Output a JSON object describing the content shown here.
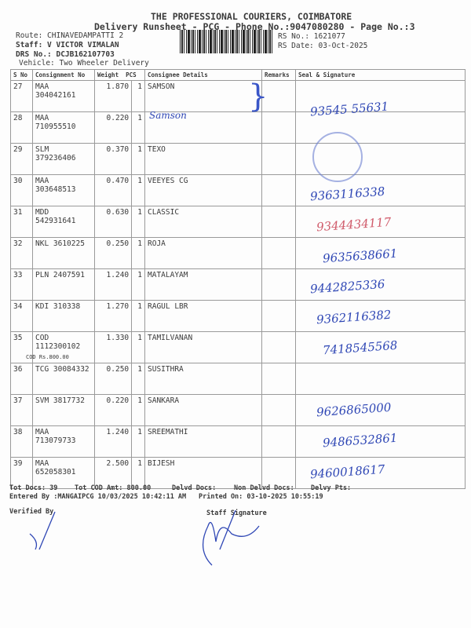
{
  "header": {
    "company": "THE PROFESSIONAL COURIERS, COIMBATORE",
    "subtitle": "Delivery Runsheet - PCG - Phone No.:9047080280 - Page No.:3",
    "route": "Route: CHINAVEDAMPATTI 2",
    "staff": "Staff: V VICTOR VIMALAN",
    "drs": "DRS No.: DCJB162107703",
    "vehicle": "Vehicle: Two Wheeler Delivery",
    "rs_no": "RS No.: 1621077",
    "rs_date": "RS Date: 03-Oct-2025"
  },
  "columns": [
    "S No",
    "Consignment No",
    "Weight",
    "PCS",
    "Consignee Details",
    "Remarks",
    "Seal & Signature"
  ],
  "rows": [
    {
      "sno": "27",
      "cn": "MAA 304042161",
      "weight": "1.870",
      "pcs": "1",
      "consignee": "SAMSON",
      "sig": "93545 55631"
    },
    {
      "sno": "28",
      "cn": "MAA 710955510",
      "weight": "0.220",
      "pcs": "1",
      "consignee": "",
      "sig": "Samson"
    },
    {
      "sno": "29",
      "cn": "SLM 379236406",
      "weight": "0.370",
      "pcs": "1",
      "consignee": "TEXO",
      "sig": ""
    },
    {
      "sno": "30",
      "cn": "MAA 303648513",
      "weight": "0.470",
      "pcs": "1",
      "consignee": "VEEYES CG",
      "sig": "9363116338"
    },
    {
      "sno": "31",
      "cn": "MDD 542931641",
      "weight": "0.630",
      "pcs": "1",
      "consignee": "CLASSIC",
      "sig": "9344434117"
    },
    {
      "sno": "32",
      "cn": "NKL 3610225",
      "weight": "0.250",
      "pcs": "1",
      "consignee": "ROJA",
      "sig": "9635638661"
    },
    {
      "sno": "33",
      "cn": "PLN 2407591",
      "weight": "1.240",
      "pcs": "1",
      "consignee": "MATALAYAM",
      "sig": "9442825336"
    },
    {
      "sno": "34",
      "cn": "KDI 310338",
      "weight": "1.270",
      "pcs": "1",
      "consignee": "RAGUL LBR",
      "sig": "9362116382"
    },
    {
      "sno": "35",
      "cn": "COD 1112300102",
      "weight": "1.330",
      "pcs": "1",
      "consignee": "TAMILVANAN",
      "cod": "COD Rs.800.00",
      "sig": "7418545568"
    },
    {
      "sno": "36",
      "cn": "TCG 30084332",
      "weight": "0.250",
      "pcs": "1",
      "consignee": "SUSITHRA",
      "sig": ""
    },
    {
      "sno": "37",
      "cn": "SVM 3817732",
      "weight": "0.220",
      "pcs": "1",
      "consignee": "SANKARA",
      "sig": "9626865000"
    },
    {
      "sno": "38",
      "cn": "MAA 713079733",
      "weight": "1.240",
      "pcs": "1",
      "consignee": "SREEMATHI",
      "sig": "9486532861"
    },
    {
      "sno": "39",
      "cn": "MAA 652058301",
      "weight": "2.500",
      "pcs": "1",
      "consignee": "BIJESH",
      "sig": "9460018617"
    }
  ],
  "footer": {
    "tot_docs": "Tot Docs:  39",
    "tot_cod": "Tot COD Amt:  800.00",
    "delvd": "Delvd Docs:",
    "non_delvd": "Non Delvd Docs:",
    "delvy_pts": "Delvy Pts:",
    "entered": "Entered By :MANGAIPCG 10/03/2025 10:42:11 AM",
    "printed": "Printed On: 03-10-2025 10:55:19",
    "verified": "Verified By",
    "staff_sig": "Staff Signature"
  },
  "colors": {
    "ink": "#2f47b5",
    "stamp": "#3a56c8",
    "cod_stamp": "#d05a6a"
  }
}
